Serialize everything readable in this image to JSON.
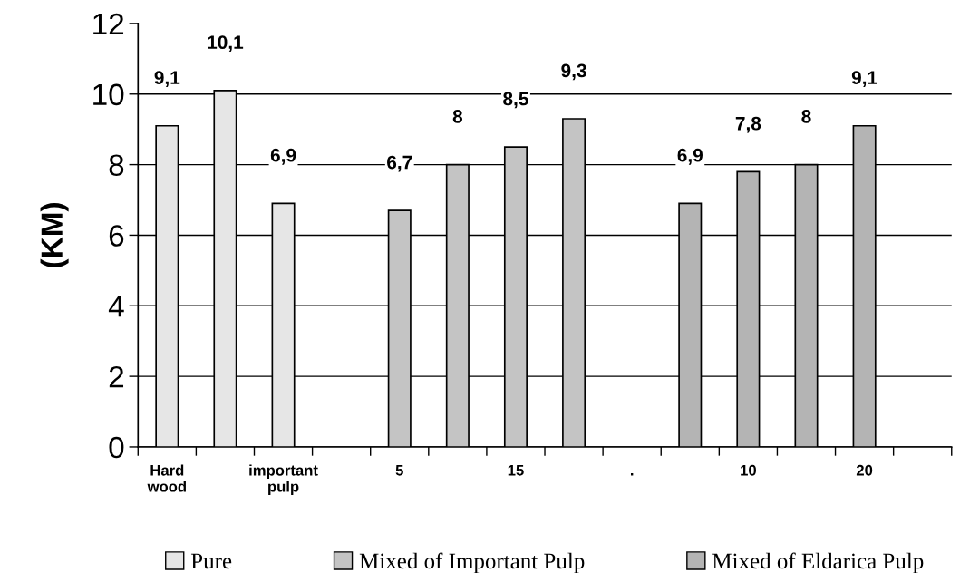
{
  "chart_data": {
    "type": "bar",
    "ylabel": "(KM)",
    "categories": [
      "Hard\nwood",
      null,
      "important\npulp",
      null,
      "5",
      null,
      "15",
      null,
      ".",
      null,
      "10",
      null,
      "20",
      null
    ],
    "series": [
      {
        "name": "Pure",
        "color": "#e6e6e6",
        "values": [
          9.1,
          10.1,
          6.9,
          null,
          null,
          null,
          null,
          null,
          null,
          null,
          null,
          null,
          null,
          null
        ],
        "value_labels": [
          "9,1",
          "10,1",
          "6,9",
          null,
          null,
          null,
          null,
          null,
          null,
          null,
          null,
          null,
          null,
          null
        ]
      },
      {
        "name": "Mixed of Important Pulp",
        "color": "#c4c4c4",
        "values": [
          null,
          null,
          null,
          null,
          6.7,
          8,
          8.5,
          9.3,
          null,
          null,
          null,
          null,
          null,
          null
        ],
        "value_labels": [
          null,
          null,
          null,
          null,
          "6,7",
          "8",
          "8,5",
          "9,3",
          null,
          null,
          null,
          null,
          null,
          null
        ]
      },
      {
        "name": "Mixed of Eldarica Pulp",
        "color": "#b4b4b4",
        "values": [
          null,
          null,
          null,
          null,
          null,
          null,
          null,
          null,
          null,
          6.9,
          7.8,
          8,
          9.1,
          null
        ],
        "value_labels": [
          null,
          null,
          null,
          null,
          null,
          null,
          null,
          null,
          null,
          "6,9",
          "7,8",
          "8",
          "9,1",
          null
        ]
      }
    ],
    "ylim": [
      0,
      12
    ],
    "yticks": [
      0,
      2,
      4,
      6,
      8,
      10,
      12
    ],
    "grid": "y",
    "legend": "bottom"
  }
}
